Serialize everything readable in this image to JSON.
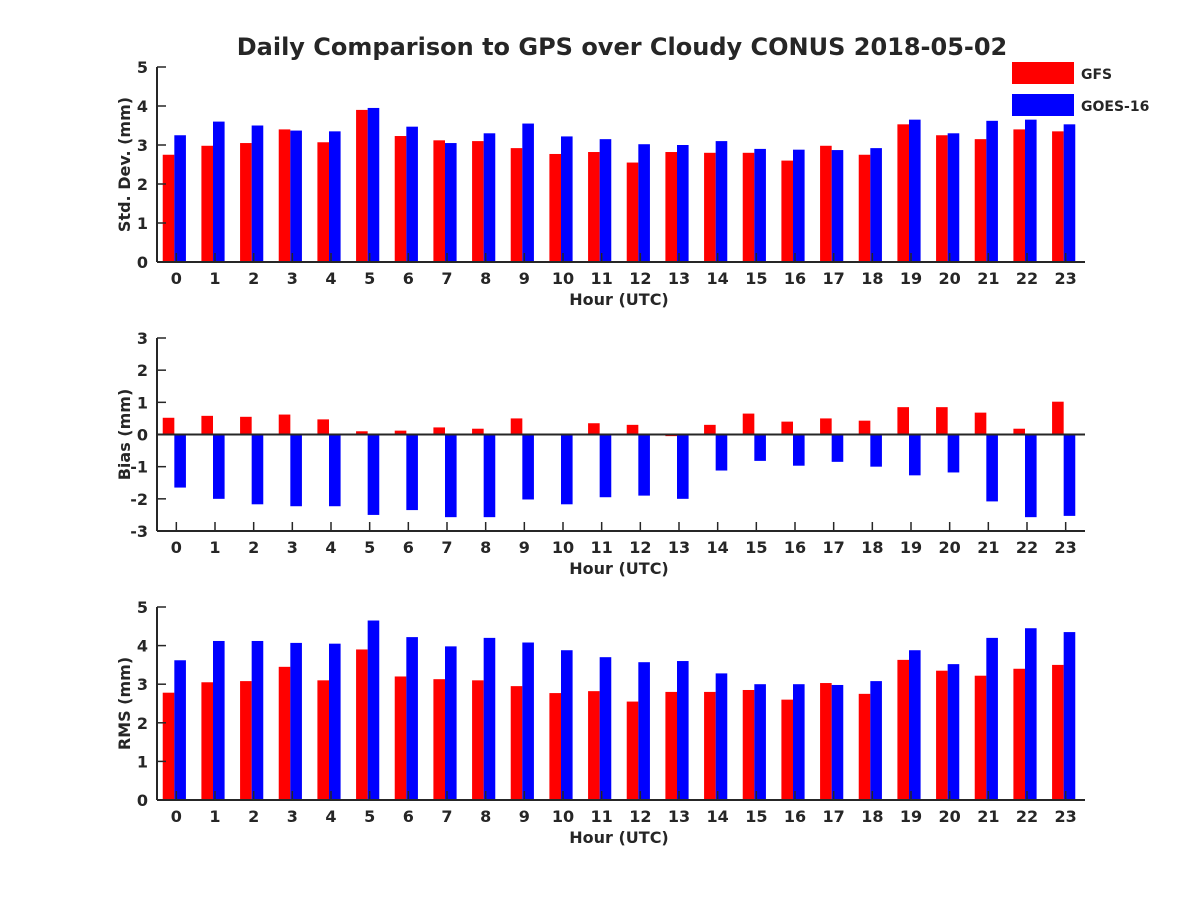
{
  "title": "Daily Comparison to GPS over Cloudy CONUS 2018-05-02",
  "legend": {
    "position": "top-right",
    "entries": [
      {
        "name": "GFS",
        "color": "#ff0000"
      },
      {
        "name": "GOES-16",
        "color": "#0000ff"
      }
    ]
  },
  "chart_data": [
    {
      "type": "bar",
      "xlabel": "Hour (UTC)",
      "ylabel": "Std. Dev. (mm)",
      "ylim": [
        0,
        5
      ],
      "yticks": [
        0,
        1,
        2,
        3,
        4,
        5
      ],
      "categories": [
        "0",
        "1",
        "2",
        "3",
        "4",
        "5",
        "6",
        "7",
        "8",
        "9",
        "10",
        "11",
        "12",
        "13",
        "14",
        "15",
        "16",
        "17",
        "18",
        "19",
        "20",
        "21",
        "22",
        "23"
      ],
      "series": [
        {
          "name": "GFS",
          "color": "#ff0000",
          "values": [
            2.75,
            2.98,
            3.05,
            3.4,
            3.07,
            3.9,
            3.23,
            3.12,
            3.1,
            2.92,
            2.77,
            2.82,
            2.55,
            2.82,
            2.8,
            2.8,
            2.6,
            2.98,
            2.75,
            3.53,
            3.25,
            3.15,
            3.4,
            3.35
          ]
        },
        {
          "name": "GOES-16",
          "color": "#0000ff",
          "values": [
            3.25,
            3.6,
            3.5,
            3.37,
            3.35,
            3.95,
            3.47,
            3.05,
            3.3,
            3.55,
            3.22,
            3.15,
            3.02,
            3.0,
            3.1,
            2.9,
            2.88,
            2.87,
            2.92,
            3.65,
            3.3,
            3.62,
            3.65,
            3.53
          ]
        }
      ]
    },
    {
      "type": "bar",
      "xlabel": "Hour (UTC)",
      "ylabel": "Bias (mm)",
      "ylim": [
        -3,
        3
      ],
      "yticks": [
        -3,
        -2,
        -1,
        0,
        1,
        2,
        3
      ],
      "categories": [
        "0",
        "1",
        "2",
        "3",
        "4",
        "5",
        "6",
        "7",
        "8",
        "9",
        "10",
        "11",
        "12",
        "13",
        "14",
        "15",
        "16",
        "17",
        "18",
        "19",
        "20",
        "21",
        "22",
        "23"
      ],
      "series": [
        {
          "name": "GFS",
          "color": "#ff0000",
          "values": [
            0.52,
            0.58,
            0.55,
            0.62,
            0.47,
            0.1,
            0.12,
            0.22,
            0.18,
            0.5,
            0.0,
            0.35,
            0.3,
            -0.05,
            0.3,
            0.65,
            0.4,
            0.5,
            0.43,
            0.85,
            0.85,
            0.68,
            0.18,
            1.02
          ]
        },
        {
          "name": "GOES-16",
          "color": "#0000ff",
          "values": [
            -1.65,
            -2.0,
            -2.17,
            -2.23,
            -2.23,
            -2.5,
            -2.35,
            -2.57,
            -2.57,
            -2.02,
            -2.17,
            -1.95,
            -1.9,
            -2.0,
            -1.12,
            -0.82,
            -0.97,
            -0.85,
            -1.0,
            -1.27,
            -1.18,
            -2.08,
            -2.57,
            -2.53
          ]
        }
      ]
    },
    {
      "type": "bar",
      "xlabel": "Hour (UTC)",
      "ylabel": "RMS (mm)",
      "ylim": [
        0,
        5
      ],
      "yticks": [
        0,
        1,
        2,
        3,
        4,
        5
      ],
      "categories": [
        "0",
        "1",
        "2",
        "3",
        "4",
        "5",
        "6",
        "7",
        "8",
        "9",
        "10",
        "11",
        "12",
        "13",
        "14",
        "15",
        "16",
        "17",
        "18",
        "19",
        "20",
        "21",
        "22",
        "23"
      ],
      "series": [
        {
          "name": "GFS",
          "color": "#ff0000",
          "values": [
            2.78,
            3.05,
            3.08,
            3.45,
            3.1,
            3.9,
            3.2,
            3.13,
            3.1,
            2.95,
            2.77,
            2.82,
            2.55,
            2.8,
            2.8,
            2.85,
            2.6,
            3.03,
            2.75,
            3.63,
            3.35,
            3.22,
            3.4,
            3.5
          ]
        },
        {
          "name": "GOES-16",
          "color": "#0000ff",
          "values": [
            3.62,
            4.12,
            4.12,
            4.07,
            4.05,
            4.65,
            4.22,
            3.98,
            4.2,
            4.08,
            3.88,
            3.7,
            3.57,
            3.6,
            3.28,
            3.0,
            3.0,
            2.98,
            3.08,
            3.88,
            3.52,
            4.2,
            4.45,
            4.35
          ]
        }
      ]
    }
  ]
}
